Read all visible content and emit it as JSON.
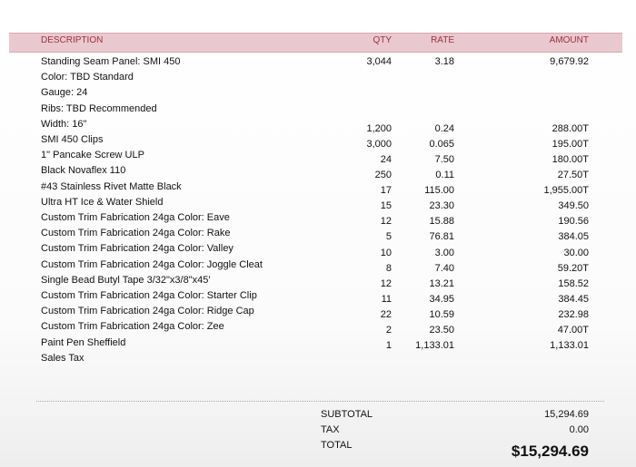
{
  "table": {
    "headers": [
      "DESCRIPTION",
      "QTY",
      "RATE",
      "AMOUNT"
    ],
    "first_row": [
      "3,044",
      "3.18",
      "9,679.92"
    ],
    "description_lines": [
      "Standing Seam Panel: SMI 450",
      "Color: TBD Standard",
      "Gauge: 24",
      "Ribs: TBD Recommended",
      "Width: 16\"",
      "SMI 450 Clips",
      "1\" Pancake Screw ULP",
      "Black Novaflex 110",
      "#43 Stainless Rivet Matte Black",
      "Ultra HT Ice & Water Shield",
      "Custom Trim Fabrication 24ga Color: Eave",
      "Custom Trim Fabrication 24ga Color: Rake",
      "Custom Trim Fabrication 24ga Color: Valley",
      "Custom Trim Fabrication 24ga Color: Joggle Cleat",
      "Single Bead Butyl Tape 3/32\"x3/8\"x45'",
      "Custom Trim Fabrication 24ga Color: Starter Clip",
      "Custom Trim Fabrication 24ga Color: Ridge Cap",
      "Custom Trim Fabrication 24ga Color: Zee",
      "Paint Pen Sheffield",
      "Sales Tax"
    ],
    "rows": [
      [
        "1,200",
        "0.24",
        "288.00T"
      ],
      [
        "3,000",
        "0.065",
        "195.00T"
      ],
      [
        "24",
        "7.50",
        "180.00T"
      ],
      [
        "250",
        "0.11",
        "27.50T"
      ],
      [
        "17",
        "115.00",
        "1,955.00T"
      ],
      [
        "15",
        "23.30",
        "349.50"
      ],
      [
        "12",
        "15.88",
        "190.56"
      ],
      [
        "5",
        "76.81",
        "384.05"
      ],
      [
        "10",
        "3.00",
        "30.00"
      ],
      [
        "8",
        "7.40",
        "59.20T"
      ],
      [
        "12",
        "13.21",
        "158.52"
      ],
      [
        "11",
        "34.95",
        "384.45"
      ],
      [
        "22",
        "10.59",
        "232.98"
      ],
      [
        "2",
        "23.50",
        "47.00T"
      ],
      [
        "1",
        "1,133.01",
        "1,133.01"
      ]
    ]
  },
  "totals": {
    "labels": [
      "SUBTOTAL",
      "TAX",
      "TOTAL"
    ],
    "values": [
      "15,294.69",
      "0.00",
      "$15,294.69"
    ]
  }
}
